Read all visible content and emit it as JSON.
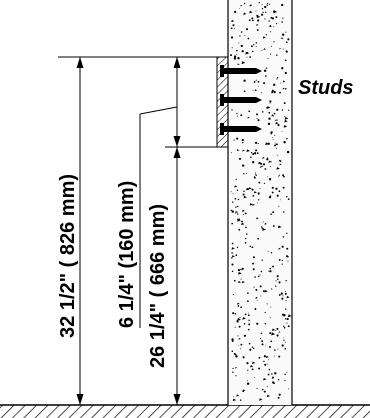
{
  "labels": {
    "studs": "Studs",
    "overall_height": "32  1/2\" ( 826 mm)",
    "offset_upper": "6  1/4\" (160 mm)",
    "offset_lower": "26  1/4\" ( 666 mm)"
  }
}
